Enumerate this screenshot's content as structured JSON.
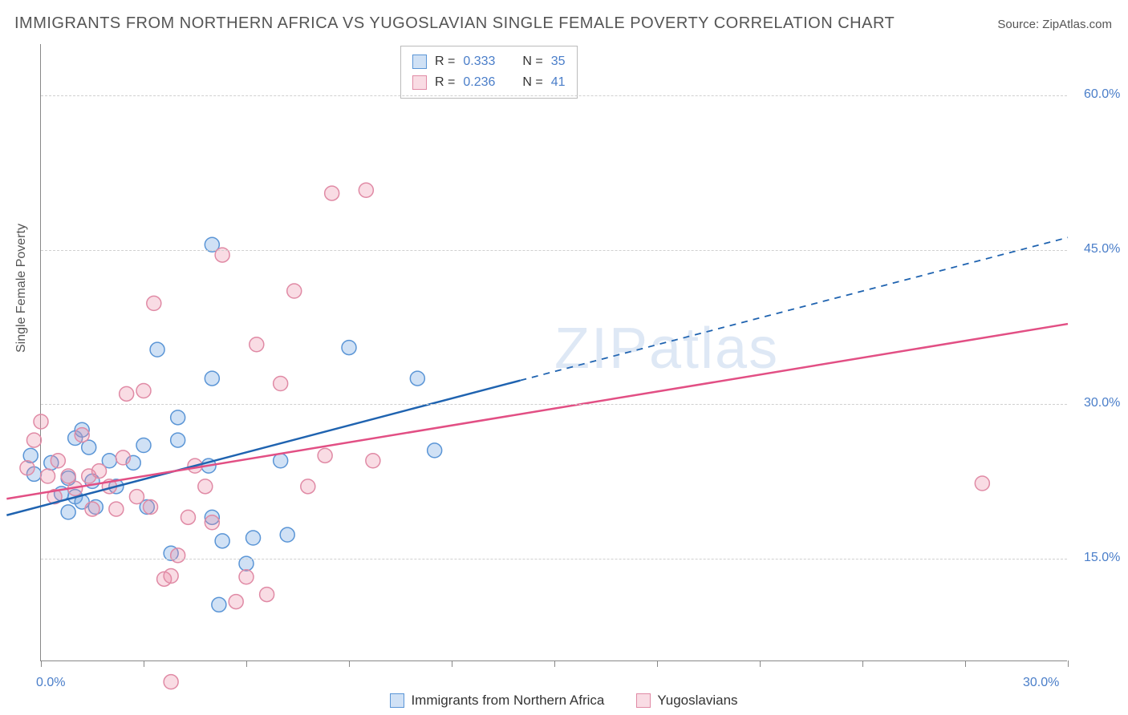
{
  "title": "IMMIGRANTS FROM NORTHERN AFRICA VS YUGOSLAVIAN SINGLE FEMALE POVERTY CORRELATION CHART",
  "source_label": "Source:",
  "source_name": "ZipAtlas.com",
  "ylabel": "Single Female Poverty",
  "watermark": "ZIPatlas",
  "x_axis": {
    "min": 0.0,
    "max": 30.0,
    "ticks": [
      0.0,
      30.0
    ],
    "tick_labels": [
      "0.0%",
      "30.0%"
    ],
    "minor_tick_count": 10
  },
  "y_axis": {
    "min": 5.0,
    "max": 65.0,
    "ticks": [
      15.0,
      30.0,
      45.0,
      60.0
    ],
    "tick_labels": [
      "15.0%",
      "30.0%",
      "45.0%",
      "60.0%"
    ]
  },
  "colors": {
    "series_a_fill": "rgba(120,170,225,0.35)",
    "series_a_stroke": "#5a95d6",
    "series_a_line": "#1f63b0",
    "series_b_fill": "rgba(235,140,165,0.30)",
    "series_b_stroke": "#e08aa5",
    "series_b_line": "#e24f84",
    "grid": "#d0d0d0",
    "axis": "#888888",
    "text": "#555555",
    "value_text": "#4a7ec9",
    "background": "#ffffff"
  },
  "marker_radius": 9,
  "line_width": 2.5,
  "series": [
    {
      "id": "a",
      "label": "Immigrants from Northern Africa",
      "R": "0.333",
      "N": "35",
      "regression": {
        "x0": -1.0,
        "y0": 19.2,
        "x1_solid": 14.0,
        "y1_solid": 32.3,
        "x2_dash": 30.0,
        "y2_dash": 46.2
      },
      "points": [
        [
          -0.3,
          25.0
        ],
        [
          -0.2,
          23.2
        ],
        [
          0.3,
          24.3
        ],
        [
          0.6,
          21.3
        ],
        [
          0.8,
          19.5
        ],
        [
          0.8,
          22.8
        ],
        [
          1.0,
          26.7
        ],
        [
          1.0,
          21.0
        ],
        [
          1.2,
          20.5
        ],
        [
          1.2,
          27.5
        ],
        [
          1.4,
          25.8
        ],
        [
          1.5,
          22.5
        ],
        [
          1.6,
          20.0
        ],
        [
          2.0,
          24.5
        ],
        [
          2.2,
          22.0
        ],
        [
          2.7,
          24.3
        ],
        [
          3.0,
          26.0
        ],
        [
          3.1,
          20.0
        ],
        [
          3.4,
          35.3
        ],
        [
          3.8,
          15.5
        ],
        [
          4.0,
          26.5
        ],
        [
          4.0,
          28.7
        ],
        [
          4.9,
          24.0
        ],
        [
          5.0,
          45.5
        ],
        [
          5.0,
          32.5
        ],
        [
          5.2,
          10.5
        ],
        [
          5.3,
          16.7
        ],
        [
          6.0,
          14.5
        ],
        [
          6.2,
          17.0
        ],
        [
          7.0,
          24.5
        ],
        [
          7.2,
          17.3
        ],
        [
          9.0,
          35.5
        ],
        [
          11.0,
          32.5
        ],
        [
          11.5,
          25.5
        ],
        [
          5.0,
          19.0
        ]
      ]
    },
    {
      "id": "b",
      "label": "Yugoslavians",
      "R": "0.236",
      "N": "41",
      "regression": {
        "x0": -1.0,
        "y0": 20.8,
        "x1_solid": 30.0,
        "y1_solid": 37.8
      },
      "points": [
        [
          -0.4,
          23.8
        ],
        [
          -0.2,
          26.5
        ],
        [
          0.0,
          28.3
        ],
        [
          0.2,
          23.0
        ],
        [
          0.4,
          21.0
        ],
        [
          0.5,
          24.5
        ],
        [
          0.8,
          23.0
        ],
        [
          1.0,
          21.8
        ],
        [
          1.2,
          27.0
        ],
        [
          1.4,
          23.0
        ],
        [
          1.5,
          19.8
        ],
        [
          1.7,
          23.5
        ],
        [
          2.0,
          22.0
        ],
        [
          2.2,
          19.8
        ],
        [
          2.4,
          24.8
        ],
        [
          2.8,
          21.0
        ],
        [
          3.0,
          31.3
        ],
        [
          3.2,
          20.0
        ],
        [
          3.3,
          39.8
        ],
        [
          3.6,
          13.0
        ],
        [
          3.8,
          13.3
        ],
        [
          4.0,
          15.3
        ],
        [
          4.3,
          19.0
        ],
        [
          4.5,
          24.0
        ],
        [
          4.8,
          22.0
        ],
        [
          5.0,
          18.5
        ],
        [
          5.3,
          44.5
        ],
        [
          5.7,
          10.8
        ],
        [
          6.0,
          13.2
        ],
        [
          6.3,
          35.8
        ],
        [
          6.6,
          11.5
        ],
        [
          7.0,
          32.0
        ],
        [
          7.4,
          41.0
        ],
        [
          7.8,
          22.0
        ],
        [
          8.3,
          25.0
        ],
        [
          8.5,
          50.5
        ],
        [
          9.5,
          50.8
        ],
        [
          9.7,
          24.5
        ],
        [
          3.8,
          3.0
        ],
        [
          27.5,
          22.3
        ],
        [
          2.5,
          31.0
        ]
      ]
    }
  ],
  "legend_top": {
    "r_label": "R =",
    "n_label": "N ="
  }
}
